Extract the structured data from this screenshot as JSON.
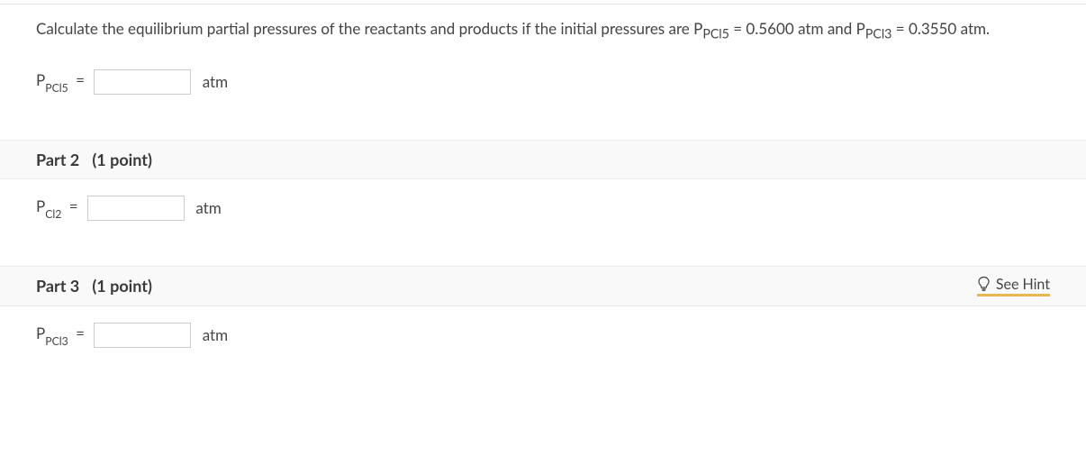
{
  "question": {
    "prompt_html": "Calculate the equilibrium partial pressures of the reactants and products if the initial pressures are P<sub>PCl5</sub> = 0.5600 atm and P<sub>PCl3</sub> = 0.3550 atm."
  },
  "part1": {
    "var_main": "P",
    "var_sub": "PCl5",
    "eq": "=",
    "value": "",
    "unit": "atm"
  },
  "part2": {
    "header_title": "Part 2",
    "header_points": "(1 point)",
    "var_main": "P",
    "var_sub": "Cl2",
    "eq": "=",
    "value": "",
    "unit": "atm"
  },
  "part3": {
    "header_title": "Part 3",
    "header_points": "(1 point)",
    "hint_label": "See Hint",
    "var_main": "P",
    "var_sub": "PCl3",
    "eq": "=",
    "value": "",
    "unit": "atm"
  },
  "style": {
    "font_family": "Segoe UI, Lato, Arial, sans-serif",
    "body_color": "#444444",
    "divider_color": "#e5e5e5",
    "part_bg": "#f9f9f9",
    "part_border": "#ececec",
    "hint_underline": "#e6b84f",
    "input_border": "#cccccc"
  }
}
